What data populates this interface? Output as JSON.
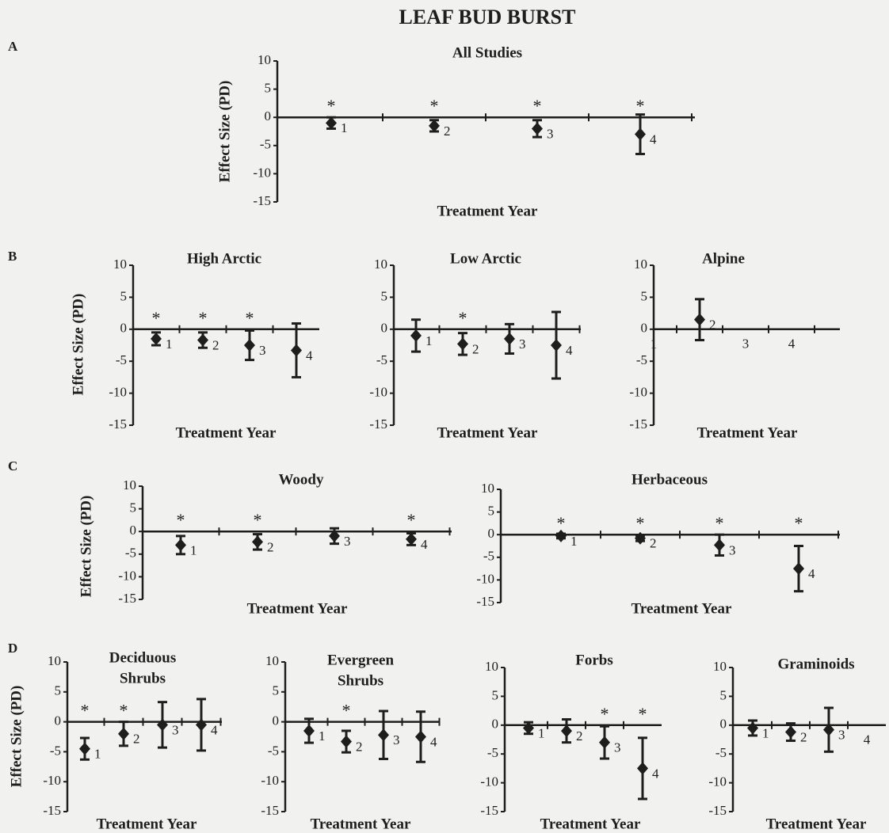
{
  "title": "LEAF BUD BURST",
  "panel_labels": [
    "A",
    "B",
    "C",
    "D"
  ],
  "chart_data": [
    {
      "type": "errorbar",
      "title": [
        "All Studies"
      ],
      "ylabel": "Effect Size (PD)",
      "xlabel": "Treatment Year",
      "categories": [
        "1",
        "2",
        "3",
        "4"
      ],
      "values": [
        -1,
        -1.5,
        -2,
        -3
      ],
      "errors": [
        1,
        1,
        1.5,
        3.5
      ],
      "annotations": [
        "*",
        "*",
        "*",
        "*"
      ],
      "ylim": [
        -15,
        10
      ],
      "yticks": [
        -15,
        -10,
        -5,
        0,
        5,
        10
      ],
      "color": "#1e1e1e"
    },
    {
      "type": "errorbar",
      "title": [
        "High Arctic"
      ],
      "ylabel": "Effect Size (PD)",
      "xlabel": "Treatment Year",
      "categories": [
        "1",
        "2",
        "3",
        "4"
      ],
      "values": [
        -1.5,
        -1.7,
        -2.5,
        -3.3
      ],
      "errors": [
        1,
        1.2,
        2.3,
        4.2
      ],
      "annotations": [
        "*",
        "*",
        "*",
        null
      ],
      "ylim": [
        -15,
        10
      ],
      "yticks": [
        -15,
        -10,
        -5,
        0,
        5,
        10
      ],
      "color": "#1e1e1e"
    },
    {
      "type": "errorbar",
      "title": [
        "Low Arctic"
      ],
      "xlabel": "Treatment Year",
      "categories": [
        "1",
        "2",
        "3",
        "4"
      ],
      "values": [
        -1,
        -2.3,
        -1.5,
        -2.5
      ],
      "errors": [
        2.5,
        1.7,
        2.3,
        5.2
      ],
      "annotations": [
        null,
        "*",
        null,
        null
      ],
      "ylim": [
        -15,
        10
      ],
      "yticks": [
        -15,
        -10,
        -5,
        0,
        5,
        10
      ],
      "color": "#1e1e1e"
    },
    {
      "type": "errorbar",
      "title": [
        "Alpine"
      ],
      "xlabel": "Treatment Year",
      "categories": [
        "1",
        "2",
        "3",
        "4"
      ],
      "values": [
        null,
        1.5,
        null,
        null
      ],
      "errors": [
        null,
        3.2,
        null,
        null
      ],
      "annotations": [
        null,
        null,
        null,
        null
      ],
      "ylim": [
        -15,
        10
      ],
      "yticks": [
        -15,
        -10,
        -5,
        0,
        5,
        10
      ],
      "color": "#1e1e1e"
    },
    {
      "type": "errorbar",
      "title": [
        "Woody"
      ],
      "ylabel": "Effect Size (PD)",
      "xlabel": "Treatment Year",
      "categories": [
        "1",
        "2",
        "3",
        "4"
      ],
      "values": [
        -3,
        -2.3,
        -1,
        -1.7
      ],
      "errors": [
        2,
        1.7,
        1.7,
        1.3
      ],
      "annotations": [
        "*",
        "*",
        null,
        "*"
      ],
      "ylim": [
        -15,
        10
      ],
      "yticks": [
        -15,
        -10,
        -5,
        0,
        5,
        10
      ],
      "color": "#1e1e1e"
    },
    {
      "type": "errorbar",
      "title": [
        "Herbaceous"
      ],
      "xlabel": "Treatment Year",
      "categories": [
        "1",
        "2",
        "3",
        "4"
      ],
      "values": [
        -0.3,
        -0.8,
        -2.3,
        -7.5
      ],
      "errors": [
        0.5,
        0.6,
        2.3,
        5
      ],
      "annotations": [
        "*",
        "*",
        "*",
        "*"
      ],
      "ylim": [
        -15,
        10
      ],
      "yticks": [
        -15,
        -10,
        -5,
        0,
        5,
        10
      ],
      "color": "#1e1e1e"
    },
    {
      "type": "errorbar",
      "title": [
        "Deciduous",
        "Shrubs"
      ],
      "ylabel": "Effect Size (PD)",
      "xlabel": "Treatment Year",
      "categories": [
        "1",
        "2",
        "3",
        "4"
      ],
      "values": [
        -4.5,
        -2,
        -0.5,
        -0.5
      ],
      "errors": [
        1.8,
        2,
        3.8,
        4.3
      ],
      "annotations": [
        "*",
        "*",
        null,
        null
      ],
      "ylim": [
        -15,
        10
      ],
      "yticks": [
        -15,
        -10,
        -5,
        0,
        5,
        10
      ],
      "color": "#1e1e1e"
    },
    {
      "type": "errorbar",
      "title": [
        "Evergreen",
        "Shrubs"
      ],
      "xlabel": "Treatment Year",
      "categories": [
        "1",
        "2",
        "3",
        "4"
      ],
      "values": [
        -1.5,
        -3.3,
        -2.2,
        -2.5
      ],
      "errors": [
        2,
        1.8,
        4,
        4.2
      ],
      "annotations": [
        null,
        "*",
        null,
        null
      ],
      "ylim": [
        -15,
        10
      ],
      "yticks": [
        -15,
        -10,
        -5,
        0,
        5,
        10
      ],
      "color": "#1e1e1e"
    },
    {
      "type": "errorbar",
      "title": [
        "Forbs"
      ],
      "xlabel": "Treatment Year",
      "categories": [
        "1",
        "2",
        "3",
        "4"
      ],
      "values": [
        -0.5,
        -1,
        -3,
        -7.5
      ],
      "errors": [
        1,
        2,
        2.8,
        5.3
      ],
      "annotations": [
        null,
        null,
        "*",
        "*"
      ],
      "ylim": [
        -15,
        10
      ],
      "yticks": [
        -15,
        -10,
        -5,
        0,
        5,
        10
      ],
      "color": "#1e1e1e"
    },
    {
      "type": "errorbar",
      "title": [
        "Graminoids"
      ],
      "xlabel": "Treatment Year",
      "categories": [
        "1",
        "2",
        "3",
        "4"
      ],
      "values": [
        -0.5,
        -1.2,
        -0.8,
        null
      ],
      "errors": [
        1.3,
        1.5,
        3.8,
        null
      ],
      "annotations": [
        null,
        null,
        null,
        null
      ],
      "ylim": [
        -15,
        10
      ],
      "yticks": [
        -15,
        -10,
        -5,
        0,
        5,
        10
      ],
      "color": "#1e1e1e"
    }
  ]
}
